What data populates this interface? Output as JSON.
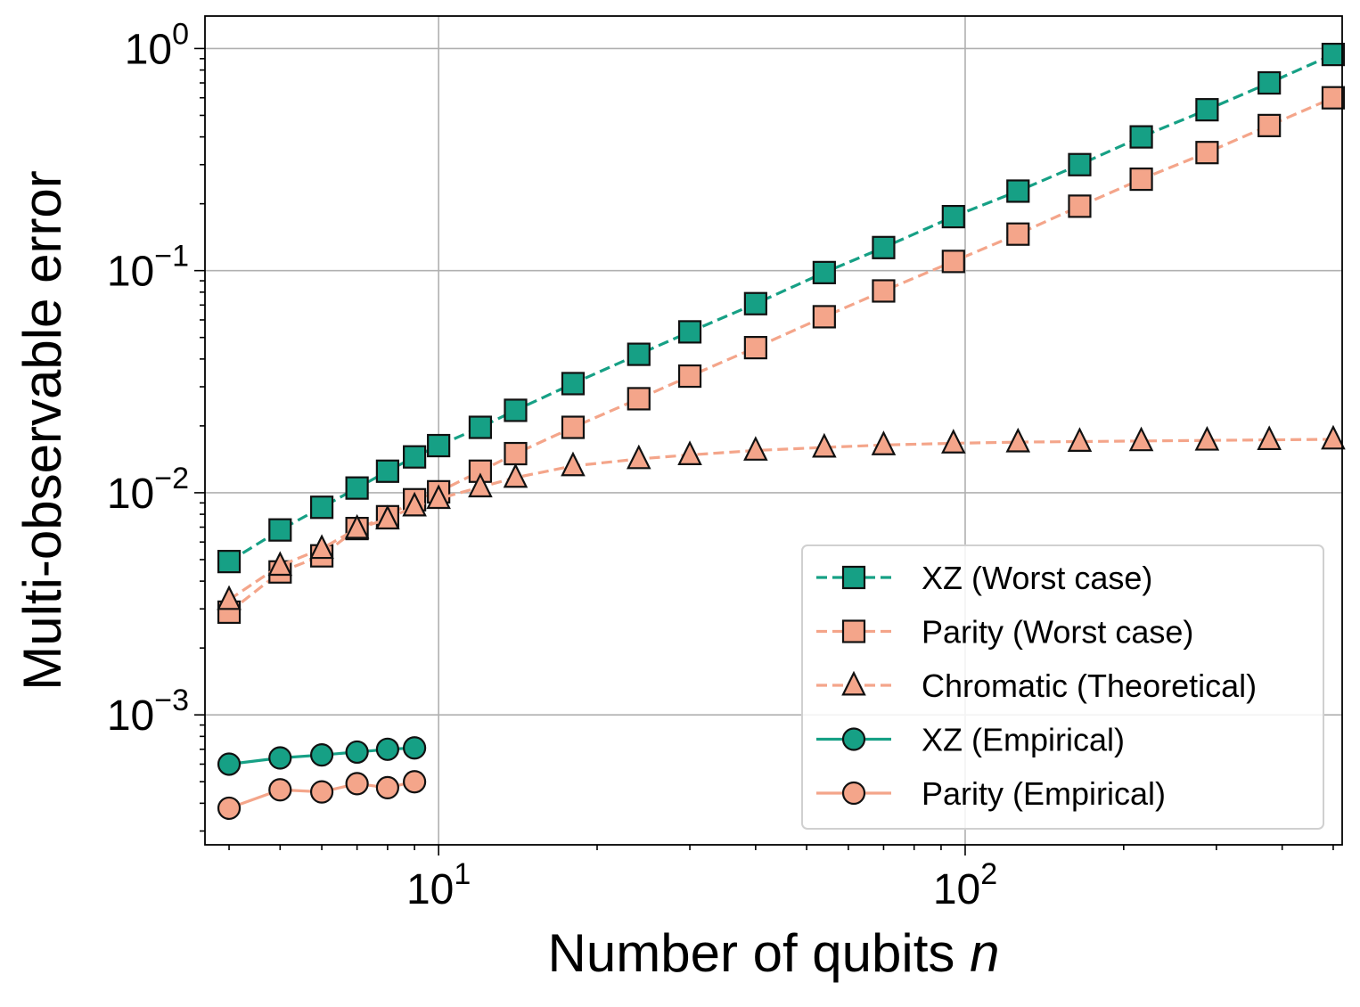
{
  "chart_data": {
    "type": "line",
    "title": "",
    "xlabel": "Number of qubits",
    "xlabel_var": "n",
    "ylabel": "Multi-observable error",
    "xscale": "log",
    "yscale": "log",
    "xlim": [
      3.6,
      520
    ],
    "ylim": [
      0.00026,
      1.4
    ],
    "grid": true,
    "legend_position": "lower right",
    "x_ticks": [
      {
        "base": "10",
        "exp": "1",
        "value": 10
      },
      {
        "base": "10",
        "exp": "2",
        "value": 100
      }
    ],
    "y_ticks": [
      {
        "base": "10",
        "exp": "0",
        "value": 1
      },
      {
        "base": "10",
        "exp": "−1",
        "value": 0.1
      },
      {
        "base": "10",
        "exp": "−2",
        "value": 0.01
      },
      {
        "base": "10",
        "exp": "−3",
        "value": 0.001
      }
    ],
    "series": [
      {
        "name": "XZ (Worst case)",
        "color": "#16a085",
        "line": "dashed",
        "marker": "square",
        "x": [
          4,
          5,
          6,
          7,
          8,
          9,
          10,
          12,
          14,
          18,
          24,
          30,
          40,
          54,
          70,
          95,
          126,
          165,
          216,
          288,
          378,
          500
        ],
        "y": [
          0.0049,
          0.0068,
          0.0086,
          0.0105,
          0.0125,
          0.0145,
          0.0163,
          0.0197,
          0.0235,
          0.031,
          0.042,
          0.053,
          0.071,
          0.098,
          0.127,
          0.175,
          0.228,
          0.3,
          0.4,
          0.53,
          0.7,
          0.94
        ]
      },
      {
        "name": "Parity (Worst case)",
        "color": "#f4a58a",
        "line": "dashed",
        "marker": "square",
        "x": [
          4,
          5,
          6,
          7,
          8,
          9,
          10,
          12,
          14,
          18,
          24,
          30,
          40,
          54,
          70,
          95,
          126,
          165,
          216,
          288,
          378,
          500
        ],
        "y": [
          0.0029,
          0.0044,
          0.0052,
          0.0069,
          0.0078,
          0.0093,
          0.0101,
          0.0125,
          0.015,
          0.0197,
          0.0265,
          0.0335,
          0.045,
          0.062,
          0.081,
          0.11,
          0.146,
          0.195,
          0.258,
          0.34,
          0.45,
          0.6
        ]
      },
      {
        "name": "Chromatic (Theoretical)",
        "color": "#f4a58a",
        "line": "dashed",
        "marker": "triangle",
        "x": [
          4,
          5,
          6,
          7,
          8,
          9,
          10,
          12,
          14,
          18,
          24,
          30,
          40,
          54,
          70,
          95,
          126,
          165,
          216,
          288,
          378,
          500
        ],
        "y": [
          0.0033,
          0.0047,
          0.0056,
          0.0069,
          0.0076,
          0.0087,
          0.0094,
          0.0106,
          0.0117,
          0.0132,
          0.0142,
          0.0148,
          0.0155,
          0.016,
          0.0164,
          0.0167,
          0.0169,
          0.017,
          0.0171,
          0.0172,
          0.0173,
          0.0174
        ]
      },
      {
        "name": "XZ (Empirical)",
        "color": "#16a085",
        "line": "solid",
        "marker": "circle",
        "x": [
          4,
          5,
          6,
          7,
          8,
          9
        ],
        "y": [
          0.0006,
          0.00064,
          0.00066,
          0.00068,
          0.0007,
          0.00071
        ]
      },
      {
        "name": "Parity (Empirical)",
        "color": "#f4a58a",
        "line": "solid",
        "marker": "circle",
        "x": [
          4,
          5,
          6,
          7,
          8,
          9
        ],
        "y": [
          0.00038,
          0.00046,
          0.00045,
          0.00049,
          0.00047,
          0.0005
        ]
      }
    ]
  }
}
